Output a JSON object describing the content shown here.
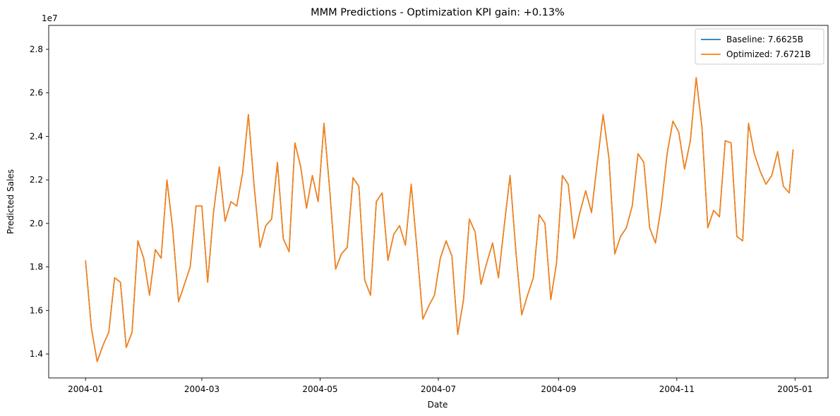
{
  "chart_data": {
    "type": "line",
    "title": "MMM Predictions - Optimization KPI gain: +0.13%",
    "xlabel": "Date",
    "ylabel": "Predicted Sales",
    "y_multiplier_label": "1e7",
    "xlim": [
      "2003-12-13",
      "2005-01-18"
    ],
    "ylim": [
      12900000,
      29100000
    ],
    "x_ticks": [
      "2004-01-01",
      "2004-03-01",
      "2004-05-01",
      "2004-07-01",
      "2004-09-01",
      "2004-11-01",
      "2005-01-01"
    ],
    "x_tick_labels": [
      "2004-01",
      "2004-03",
      "2004-05",
      "2004-07",
      "2004-09",
      "2004-11",
      "2005-01"
    ],
    "y_ticks": [
      14000000,
      16000000,
      18000000,
      20000000,
      22000000,
      24000000,
      26000000,
      28000000
    ],
    "y_tick_labels": [
      "1.4",
      "1.6",
      "1.8",
      "2.0",
      "2.2",
      "2.4",
      "2.6",
      "2.8"
    ],
    "grid": false,
    "legend_position": "top-right",
    "x": [
      "2004-01-01",
      "2004-01-04",
      "2004-01-07",
      "2004-01-10",
      "2004-01-13",
      "2004-01-16",
      "2004-01-19",
      "2004-01-22",
      "2004-01-25",
      "2004-01-28",
      "2004-01-31",
      "2004-02-03",
      "2004-02-06",
      "2004-02-09",
      "2004-02-12",
      "2004-02-15",
      "2004-02-18",
      "2004-02-21",
      "2004-02-24",
      "2004-02-27",
      "2004-03-01",
      "2004-03-04",
      "2004-03-07",
      "2004-03-10",
      "2004-03-13",
      "2004-03-16",
      "2004-03-19",
      "2004-03-22",
      "2004-03-25",
      "2004-03-28",
      "2004-03-31",
      "2004-04-03",
      "2004-04-06",
      "2004-04-09",
      "2004-04-12",
      "2004-04-15",
      "2004-04-18",
      "2004-04-21",
      "2004-04-24",
      "2004-04-27",
      "2004-04-30",
      "2004-05-03",
      "2004-05-06",
      "2004-05-09",
      "2004-05-12",
      "2004-05-15",
      "2004-05-18",
      "2004-05-21",
      "2004-05-24",
      "2004-05-27",
      "2004-05-30",
      "2004-06-02",
      "2004-06-05",
      "2004-06-08",
      "2004-06-11",
      "2004-06-14",
      "2004-06-17",
      "2004-06-20",
      "2004-06-23",
      "2004-06-26",
      "2004-06-29",
      "2004-07-02",
      "2004-07-05",
      "2004-07-08",
      "2004-07-11",
      "2004-07-14",
      "2004-07-17",
      "2004-07-20",
      "2004-07-23",
      "2004-07-26",
      "2004-07-29",
      "2004-08-01",
      "2004-08-04",
      "2004-08-07",
      "2004-08-10",
      "2004-08-13",
      "2004-08-16",
      "2004-08-19",
      "2004-08-22",
      "2004-08-25",
      "2004-08-28",
      "2004-08-31",
      "2004-09-03",
      "2004-09-06",
      "2004-09-09",
      "2004-09-12",
      "2004-09-15",
      "2004-09-18",
      "2004-09-21",
      "2004-09-24",
      "2004-09-27",
      "2004-09-30",
      "2004-10-03",
      "2004-10-06",
      "2004-10-09",
      "2004-10-12",
      "2004-10-15",
      "2004-10-18",
      "2004-10-21",
      "2004-10-24",
      "2004-10-27",
      "2004-10-30",
      "2004-11-02",
      "2004-11-05",
      "2004-11-08",
      "2004-11-11",
      "2004-11-14",
      "2004-11-17",
      "2004-11-20",
      "2004-11-23",
      "2004-11-26",
      "2004-11-29",
      "2004-12-02",
      "2004-12-05",
      "2004-12-08",
      "2004-12-11",
      "2004-12-14",
      "2004-12-17",
      "2004-12-20",
      "2004-12-23",
      "2004-12-26",
      "2004-12-29",
      "2004-12-31"
    ],
    "series": [
      {
        "name": "Baseline: 7.6625B",
        "color": "#1f77b4",
        "values": [
          18300000,
          15200000,
          13650000,
          14400000,
          15000000,
          17500000,
          17300000,
          14300000,
          15000000,
          19200000,
          18400000,
          16700000,
          18800000,
          18400000,
          22000000,
          19700000,
          16400000,
          17200000,
          18000000,
          20800000,
          20800000,
          17300000,
          20500000,
          22600000,
          20100000,
          21000000,
          20800000,
          22300000,
          25000000,
          21700000,
          18900000,
          19900000,
          20200000,
          22800000,
          19300000,
          18700000,
          23700000,
          22600000,
          20700000,
          22200000,
          21000000,
          24600000,
          21500000,
          17900000,
          18600000,
          18900000,
          22100000,
          21700000,
          17400000,
          16700000,
          21000000,
          21400000,
          18300000,
          19500000,
          19900000,
          19000000,
          21800000,
          18800000,
          15600000,
          16200000,
          16700000,
          18400000,
          19200000,
          18500000,
          14900000,
          16500000,
          20200000,
          19600000,
          17200000,
          18200000,
          19100000,
          17500000,
          19900000,
          22200000,
          18700000,
          15800000,
          16700000,
          17500000,
          20400000,
          20000000,
          16500000,
          18200000,
          22200000,
          21800000,
          19300000,
          20500000,
          21500000,
          20500000,
          22800000,
          25000000,
          23000000,
          18600000,
          19400000,
          19800000,
          20800000,
          23200000,
          22800000,
          19800000,
          19100000,
          20800000,
          23200000,
          24700000,
          24200000,
          22500000,
          23800000,
          26700000,
          24400000,
          19800000,
          20600000,
          20300000,
          23800000,
          23700000,
          19400000,
          19200000,
          24600000,
          23200000,
          22400000,
          21800000,
          22200000,
          23300000,
          21700000,
          21400000,
          23400000
        ],
        "values_note_hidden": ""
      },
      {
        "name": "Optimized: 7.6721B",
        "color": "#ff7f0e",
        "values": [
          18300000,
          15200000,
          13650000,
          14400000,
          15000000,
          17500000,
          17300000,
          14300000,
          15000000,
          19200000,
          18400000,
          16700000,
          18800000,
          18400000,
          22000000,
          19700000,
          16400000,
          17200000,
          18000000,
          20800000,
          20800000,
          17300000,
          20500000,
          22600000,
          20100000,
          21000000,
          20800000,
          22300000,
          25000000,
          21700000,
          18900000,
          19900000,
          20200000,
          22800000,
          19300000,
          18700000,
          23700000,
          22600000,
          20700000,
          22200000,
          21000000,
          24600000,
          21500000,
          17900000,
          18600000,
          18900000,
          22100000,
          21700000,
          17400000,
          16700000,
          21000000,
          21400000,
          18300000,
          19500000,
          19900000,
          19000000,
          21800000,
          18800000,
          15600000,
          16200000,
          16700000,
          18400000,
          19200000,
          18500000,
          14900000,
          16500000,
          20200000,
          19600000,
          17200000,
          18200000,
          19100000,
          17500000,
          19900000,
          22200000,
          18700000,
          15800000,
          16700000,
          17500000,
          20400000,
          20000000,
          16500000,
          18200000,
          22200000,
          21800000,
          19300000,
          20500000,
          21500000,
          20500000,
          22800000,
          25000000,
          23000000,
          18600000,
          19400000,
          19800000,
          20800000,
          23200000,
          22800000,
          19800000,
          19100000,
          20800000,
          23200000,
          24700000,
          24200000,
          22500000,
          23800000,
          26700000,
          24400000,
          19800000,
          20600000,
          20300000,
          23800000,
          23700000,
          19400000,
          19200000,
          24600000,
          23200000,
          22400000,
          21800000,
          22200000,
          23300000,
          21700000,
          21400000,
          23400000
        ]
      }
    ]
  }
}
